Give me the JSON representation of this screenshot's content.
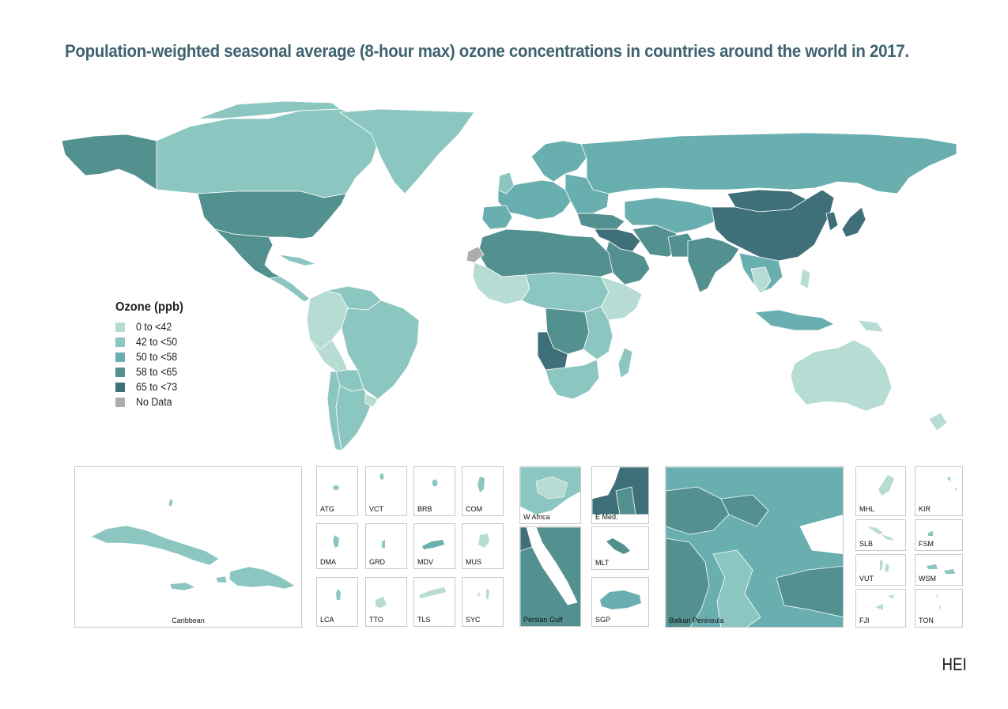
{
  "title": "Population-weighted seasonal average (8-hour max) ozone concentrations in countries around the world in 2017.",
  "legend": {
    "title": "Ozone (ppb)",
    "items": [
      {
        "label": "0 to <42",
        "color": "#b7dcd3"
      },
      {
        "label": "42 to <50",
        "color": "#8cc6c1"
      },
      {
        "label": "50 to <58",
        "color": "#6aafaf"
      },
      {
        "label": "58 to <65",
        "color": "#52918f"
      },
      {
        "label": "65 to <73",
        "color": "#3f6f78"
      },
      {
        "label": "No Data",
        "color": "#b0acad"
      }
    ]
  },
  "insets": {
    "caribbean": "Caribbean",
    "atg": "ATG",
    "vct": "VCT",
    "brb": "BRB",
    "com": "COM",
    "dma": "DMA",
    "grd": "GRD",
    "mdv": "MDV",
    "mus": "MUS",
    "lca": "LCA",
    "tto": "TTO",
    "tls": "TLS",
    "syc": "SYC",
    "w_africa": "W Africa",
    "e_med": "E Med.",
    "persian_gulf": "Persian Gulf",
    "mlt": "MLT",
    "sgp": "SGP",
    "balkan": "Balkan Peninsula",
    "mhl": "MHL",
    "kir": "KIR",
    "slb": "SLB",
    "fsm": "FSM",
    "vut": "VUT",
    "wsm": "WSM",
    "fji": "FJI",
    "ton": "TON"
  },
  "source": "HEI"
}
